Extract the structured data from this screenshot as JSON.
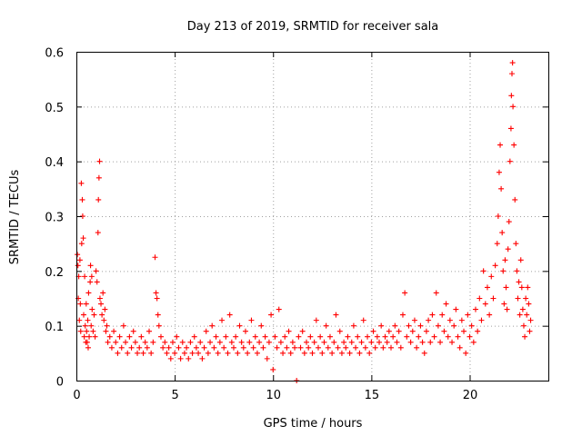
{
  "chart_data": {
    "type": "scatter",
    "title": "Day 213 of 2019, SRMTID for receiver sala",
    "xlabel": "GPS time / hours",
    "ylabel": "SRMTID / TECUs",
    "xlim": [
      0,
      24
    ],
    "ylim": [
      0,
      0.6
    ],
    "xticks": [
      0,
      5,
      10,
      15,
      20
    ],
    "xtick_labels": [
      "0",
      "5",
      "10",
      "15",
      "20"
    ],
    "yticks": [
      0,
      0.1,
      0.2,
      0.3,
      0.4,
      0.5,
      0.6
    ],
    "ytick_labels": [
      "0",
      "0.1",
      "0.2",
      "0.3",
      "0.4",
      "0.5",
      "0.6"
    ],
    "grid": true,
    "marker": "plus",
    "color": "#ff0000",
    "series": [
      {
        "name": "SRMTID",
        "points": [
          [
            0.05,
            0.23
          ],
          [
            0.08,
            0.21
          ],
          [
            0.1,
            0.15
          ],
          [
            0.12,
            0.19
          ],
          [
            0.15,
            0.11
          ],
          [
            0.18,
            0.22
          ],
          [
            0.2,
            0.14
          ],
          [
            0.22,
            0.09
          ],
          [
            0.25,
            0.36
          ],
          [
            0.27,
            0.25
          ],
          [
            0.3,
            0.33
          ],
          [
            0.32,
            0.3
          ],
          [
            0.35,
            0.26
          ],
          [
            0.37,
            0.12
          ],
          [
            0.4,
            0.08
          ],
          [
            0.42,
            0.19
          ],
          [
            0.45,
            0.1
          ],
          [
            0.48,
            0.07
          ],
          [
            0.5,
            0.14
          ],
          [
            0.52,
            0.09
          ],
          [
            0.55,
            0.07
          ],
          [
            0.58,
            0.11
          ],
          [
            0.6,
            0.06
          ],
          [
            0.62,
            0.16
          ],
          [
            0.65,
            0.08
          ],
          [
            0.7,
            0.18
          ],
          [
            0.72,
            0.21
          ],
          [
            0.75,
            0.1
          ],
          [
            0.78,
            0.19
          ],
          [
            0.8,
            0.13
          ],
          [
            0.85,
            0.09
          ],
          [
            0.9,
            0.12
          ],
          [
            0.95,
            0.08
          ],
          [
            1.0,
            0.2
          ],
          [
            1.05,
            0.18
          ],
          [
            1.1,
            0.27
          ],
          [
            1.12,
            0.33
          ],
          [
            1.15,
            0.37
          ],
          [
            1.18,
            0.4
          ],
          [
            1.2,
            0.15
          ],
          [
            1.25,
            0.14
          ],
          [
            1.3,
            0.12
          ],
          [
            1.35,
            0.16
          ],
          [
            1.4,
            0.11
          ],
          [
            1.45,
            0.13
          ],
          [
            1.5,
            0.09
          ],
          [
            1.55,
            0.1
          ],
          [
            1.6,
            0.07
          ],
          [
            1.7,
            0.08
          ],
          [
            1.8,
            0.06
          ],
          [
            1.9,
            0.09
          ],
          [
            2.0,
            0.07
          ],
          [
            2.1,
            0.05
          ],
          [
            2.2,
            0.08
          ],
          [
            2.3,
            0.06
          ],
          [
            2.4,
            0.1
          ],
          [
            2.5,
            0.07
          ],
          [
            2.6,
            0.05
          ],
          [
            2.7,
            0.08
          ],
          [
            2.8,
            0.06
          ],
          [
            2.9,
            0.09
          ],
          [
            3.0,
            0.07
          ],
          [
            3.1,
            0.05
          ],
          [
            3.2,
            0.06
          ],
          [
            3.3,
            0.08
          ],
          [
            3.4,
            0.05
          ],
          [
            3.5,
            0.07
          ],
          [
            3.6,
            0.06
          ],
          [
            3.7,
            0.09
          ],
          [
            3.8,
            0.05
          ],
          [
            3.9,
            0.07
          ],
          [
            4.0,
            0.225
          ],
          [
            4.05,
            0.16
          ],
          [
            4.1,
            0.15
          ],
          [
            4.15,
            0.12
          ],
          [
            4.2,
            0.1
          ],
          [
            4.3,
            0.08
          ],
          [
            4.4,
            0.06
          ],
          [
            4.5,
            0.07
          ],
          [
            4.6,
            0.05
          ],
          [
            4.7,
            0.06
          ],
          [
            4.8,
            0.04
          ],
          [
            4.9,
            0.07
          ],
          [
            5.0,
            0.05
          ],
          [
            5.1,
            0.08
          ],
          [
            5.2,
            0.06
          ],
          [
            5.3,
            0.04
          ],
          [
            5.4,
            0.07
          ],
          [
            5.5,
            0.05
          ],
          [
            5.6,
            0.06
          ],
          [
            5.7,
            0.04
          ],
          [
            5.8,
            0.07
          ],
          [
            5.9,
            0.05
          ],
          [
            6.0,
            0.08
          ],
          [
            6.1,
            0.06
          ],
          [
            6.2,
            0.05
          ],
          [
            6.3,
            0.07
          ],
          [
            6.4,
            0.04
          ],
          [
            6.5,
            0.06
          ],
          [
            6.6,
            0.09
          ],
          [
            6.7,
            0.05
          ],
          [
            6.8,
            0.07
          ],
          [
            6.9,
            0.1
          ],
          [
            7.0,
            0.06
          ],
          [
            7.1,
            0.08
          ],
          [
            7.2,
            0.05
          ],
          [
            7.3,
            0.07
          ],
          [
            7.4,
            0.11
          ],
          [
            7.5,
            0.06
          ],
          [
            7.6,
            0.08
          ],
          [
            7.7,
            0.05
          ],
          [
            7.8,
            0.12
          ],
          [
            7.9,
            0.07
          ],
          [
            8.0,
            0.06
          ],
          [
            8.1,
            0.08
          ],
          [
            8.2,
            0.05
          ],
          [
            8.3,
            0.1
          ],
          [
            8.4,
            0.07
          ],
          [
            8.5,
            0.06
          ],
          [
            8.6,
            0.09
          ],
          [
            8.7,
            0.05
          ],
          [
            8.8,
            0.07
          ],
          [
            8.9,
            0.11
          ],
          [
            9.0,
            0.06
          ],
          [
            9.1,
            0.08
          ],
          [
            9.2,
            0.05
          ],
          [
            9.3,
            0.07
          ],
          [
            9.4,
            0.1
          ],
          [
            9.5,
            0.06
          ],
          [
            9.6,
            0.08
          ],
          [
            9.7,
            0.04
          ],
          [
            9.8,
            0.07
          ],
          [
            9.9,
            0.12
          ],
          [
            10.0,
            0.02
          ],
          [
            10.1,
            0.08
          ],
          [
            10.2,
            0.06
          ],
          [
            10.3,
            0.13
          ],
          [
            10.4,
            0.07
          ],
          [
            10.5,
            0.05
          ],
          [
            10.6,
            0.08
          ],
          [
            10.7,
            0.06
          ],
          [
            10.8,
            0.09
          ],
          [
            10.9,
            0.05
          ],
          [
            11.0,
            0.07
          ],
          [
            11.1,
            0.06
          ],
          [
            11.2,
            0.0
          ],
          [
            11.3,
            0.08
          ],
          [
            11.4,
            0.06
          ],
          [
            11.5,
            0.09
          ],
          [
            11.6,
            0.05
          ],
          [
            11.7,
            0.07
          ],
          [
            11.8,
            0.06
          ],
          [
            11.9,
            0.08
          ],
          [
            12.0,
            0.05
          ],
          [
            12.1,
            0.07
          ],
          [
            12.2,
            0.11
          ],
          [
            12.3,
            0.06
          ],
          [
            12.4,
            0.08
          ],
          [
            12.5,
            0.05
          ],
          [
            12.6,
            0.07
          ],
          [
            12.7,
            0.1
          ],
          [
            12.8,
            0.06
          ],
          [
            12.9,
            0.08
          ],
          [
            13.0,
            0.05
          ],
          [
            13.1,
            0.07
          ],
          [
            13.2,
            0.12
          ],
          [
            13.3,
            0.06
          ],
          [
            13.4,
            0.09
          ],
          [
            13.5,
            0.05
          ],
          [
            13.6,
            0.07
          ],
          [
            13.7,
            0.06
          ],
          [
            13.8,
            0.08
          ],
          [
            13.9,
            0.05
          ],
          [
            14.0,
            0.07
          ],
          [
            14.1,
            0.1
          ],
          [
            14.2,
            0.06
          ],
          [
            14.3,
            0.08
          ],
          [
            14.4,
            0.05
          ],
          [
            14.5,
            0.07
          ],
          [
            14.6,
            0.11
          ],
          [
            14.7,
            0.06
          ],
          [
            14.8,
            0.08
          ],
          [
            14.9,
            0.05
          ],
          [
            15.0,
            0.07
          ],
          [
            15.1,
            0.09
          ],
          [
            15.2,
            0.06
          ],
          [
            15.3,
            0.08
          ],
          [
            15.4,
            0.07
          ],
          [
            15.5,
            0.1
          ],
          [
            15.6,
            0.06
          ],
          [
            15.7,
            0.08
          ],
          [
            15.8,
            0.07
          ],
          [
            15.9,
            0.09
          ],
          [
            16.0,
            0.06
          ],
          [
            16.1,
            0.08
          ],
          [
            16.2,
            0.1
          ],
          [
            16.3,
            0.07
          ],
          [
            16.4,
            0.09
          ],
          [
            16.5,
            0.06
          ],
          [
            16.6,
            0.12
          ],
          [
            16.7,
            0.16
          ],
          [
            16.8,
            0.08
          ],
          [
            16.9,
            0.1
          ],
          [
            17.0,
            0.07
          ],
          [
            17.1,
            0.09
          ],
          [
            17.2,
            0.11
          ],
          [
            17.3,
            0.06
          ],
          [
            17.4,
            0.08
          ],
          [
            17.5,
            0.1
          ],
          [
            17.6,
            0.07
          ],
          [
            17.7,
            0.05
          ],
          [
            17.8,
            0.09
          ],
          [
            17.9,
            0.11
          ],
          [
            18.0,
            0.07
          ],
          [
            18.1,
            0.12
          ],
          [
            18.2,
            0.08
          ],
          [
            18.3,
            0.16
          ],
          [
            18.4,
            0.1
          ],
          [
            18.5,
            0.07
          ],
          [
            18.6,
            0.12
          ],
          [
            18.7,
            0.09
          ],
          [
            18.8,
            0.14
          ],
          [
            18.9,
            0.08
          ],
          [
            19.0,
            0.11
          ],
          [
            19.1,
            0.07
          ],
          [
            19.2,
            0.1
          ],
          [
            19.3,
            0.13
          ],
          [
            19.4,
            0.08
          ],
          [
            19.5,
            0.06
          ],
          [
            19.6,
            0.11
          ],
          [
            19.7,
            0.09
          ],
          [
            19.8,
            0.05
          ],
          [
            19.9,
            0.12
          ],
          [
            20.0,
            0.08
          ],
          [
            20.1,
            0.1
          ],
          [
            20.2,
            0.07
          ],
          [
            20.3,
            0.13
          ],
          [
            20.4,
            0.09
          ],
          [
            20.5,
            0.15
          ],
          [
            20.6,
            0.11
          ],
          [
            20.7,
            0.2
          ],
          [
            20.8,
            0.14
          ],
          [
            20.9,
            0.17
          ],
          [
            21.0,
            0.12
          ],
          [
            21.1,
            0.19
          ],
          [
            21.2,
            0.15
          ],
          [
            21.3,
            0.21
          ],
          [
            21.4,
            0.25
          ],
          [
            21.45,
            0.3
          ],
          [
            21.5,
            0.38
          ],
          [
            21.55,
            0.43
          ],
          [
            21.6,
            0.35
          ],
          [
            21.65,
            0.27
          ],
          [
            21.7,
            0.2
          ],
          [
            21.75,
            0.14
          ],
          [
            21.8,
            0.22
          ],
          [
            21.85,
            0.17
          ],
          [
            21.9,
            0.13
          ],
          [
            21.95,
            0.24
          ],
          [
            22.0,
            0.29
          ],
          [
            22.05,
            0.4
          ],
          [
            22.1,
            0.46
          ],
          [
            22.12,
            0.52
          ],
          [
            22.15,
            0.56
          ],
          [
            22.18,
            0.58
          ],
          [
            22.2,
            0.5
          ],
          [
            22.25,
            0.43
          ],
          [
            22.3,
            0.33
          ],
          [
            22.35,
            0.25
          ],
          [
            22.4,
            0.2
          ],
          [
            22.45,
            0.15
          ],
          [
            22.5,
            0.18
          ],
          [
            22.55,
            0.12
          ],
          [
            22.6,
            0.22
          ],
          [
            22.65,
            0.17
          ],
          [
            22.7,
            0.13
          ],
          [
            22.75,
            0.1
          ],
          [
            22.8,
            0.08
          ],
          [
            22.85,
            0.15
          ],
          [
            22.9,
            0.12
          ],
          [
            22.95,
            0.17
          ],
          [
            23.0,
            0.14
          ],
          [
            23.05,
            0.09
          ],
          [
            23.1,
            0.11
          ]
        ]
      }
    ]
  }
}
